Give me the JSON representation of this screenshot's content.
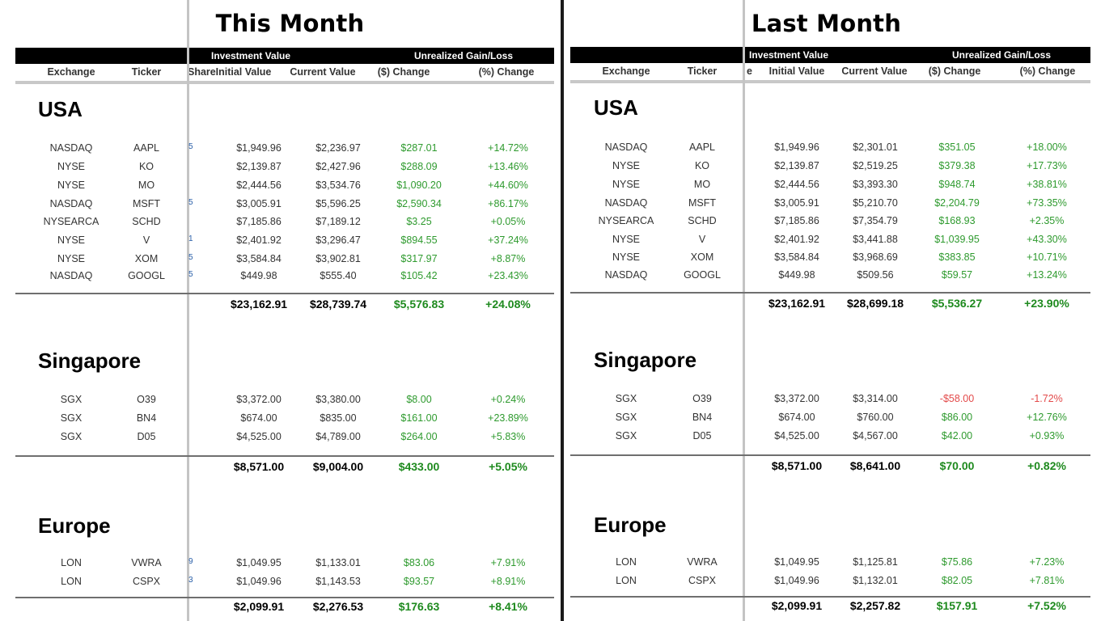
{
  "colors": {
    "header_band": "#000000",
    "gain": "#2e9a2e",
    "loss": "#e34a4a",
    "divider": "#1a1a1a",
    "frozen_pane_line": "#c4c4c4"
  },
  "this_month": {
    "title": "This Month",
    "header_groups": {
      "investment_value": "Investment Value",
      "unrealized": "Unrealized Gain/Loss"
    },
    "columns": {
      "exchange": "Exchange",
      "ticker": "Ticker",
      "share_partial": "Share",
      "initial": "Initial Value",
      "current": "Current Value",
      "change_abs": "($) Change",
      "change_pct": "(%) Change"
    },
    "regions": [
      {
        "name": "USA",
        "rows": [
          {
            "exchange": "NASDAQ",
            "ticker": "AAPL",
            "stub": "5",
            "initial": "$1,949.96",
            "current": "$2,236.97",
            "change": "$287.01",
            "pct": "+14.72%",
            "dir": "pos"
          },
          {
            "exchange": "NYSE",
            "ticker": "KO",
            "stub": "",
            "initial": "$2,139.87",
            "current": "$2,427.96",
            "change": "$288.09",
            "pct": "+13.46%",
            "dir": "pos"
          },
          {
            "exchange": "NYSE",
            "ticker": "MO",
            "stub": "",
            "initial": "$2,444.56",
            "current": "$3,534.76",
            "change": "$1,090.20",
            "pct": "+44.60%",
            "dir": "pos"
          },
          {
            "exchange": "NASDAQ",
            "ticker": "MSFT",
            "stub": "5",
            "initial": "$3,005.91",
            "current": "$5,596.25",
            "change": "$2,590.34",
            "pct": "+86.17%",
            "dir": "pos"
          },
          {
            "exchange": "NYSEARCA",
            "ticker": "SCHD",
            "stub": "",
            "initial": "$7,185.86",
            "current": "$7,189.12",
            "change": "$3.25",
            "pct": "+0.05%",
            "dir": "pos"
          },
          {
            "exchange": "NYSE",
            "ticker": "V",
            "stub": "1",
            "initial": "$2,401.92",
            "current": "$3,296.47",
            "change": "$894.55",
            "pct": "+37.24%",
            "dir": "pos"
          },
          {
            "exchange": "NYSE",
            "ticker": "XOM",
            "stub": "5",
            "initial": "$3,584.84",
            "current": "$3,902.81",
            "change": "$317.97",
            "pct": "+8.87%",
            "dir": "pos"
          },
          {
            "exchange": "NASDAQ",
            "ticker": "GOOGL",
            "stub": "5",
            "initial": "$449.98",
            "current": "$555.40",
            "change": "$105.42",
            "pct": "+23.43%",
            "dir": "pos"
          }
        ],
        "total": {
          "initial": "$23,162.91",
          "current": "$28,739.74",
          "change": "$5,576.83",
          "pct": "+24.08%"
        }
      },
      {
        "name": "Singapore",
        "rows": [
          {
            "exchange": "SGX",
            "ticker": "O39",
            "stub": "",
            "initial": "$3,372.00",
            "current": "$3,380.00",
            "change": "$8.00",
            "pct": "+0.24%",
            "dir": "pos"
          },
          {
            "exchange": "SGX",
            "ticker": "BN4",
            "stub": "",
            "initial": "$674.00",
            "current": "$835.00",
            "change": "$161.00",
            "pct": "+23.89%",
            "dir": "pos"
          },
          {
            "exchange": "SGX",
            "ticker": "D05",
            "stub": "",
            "initial": "$4,525.00",
            "current": "$4,789.00",
            "change": "$264.00",
            "pct": "+5.83%",
            "dir": "pos"
          }
        ],
        "total": {
          "initial": "$8,571.00",
          "current": "$9,004.00",
          "change": "$433.00",
          "pct": "+5.05%"
        }
      },
      {
        "name": "Europe",
        "rows": [
          {
            "exchange": "LON",
            "ticker": "VWRA",
            "stub": "9",
            "initial": "$1,049.95",
            "current": "$1,133.01",
            "change": "$83.06",
            "pct": "+7.91%",
            "dir": "pos"
          },
          {
            "exchange": "LON",
            "ticker": "CSPX",
            "stub": "3",
            "initial": "$1,049.96",
            "current": "$1,143.53",
            "change": "$93.57",
            "pct": "+8.91%",
            "dir": "pos"
          }
        ],
        "total": {
          "initial": "$2,099.91",
          "current": "$2,276.53",
          "change": "$176.63",
          "pct": "+8.41%"
        }
      }
    ]
  },
  "last_month": {
    "title": "Last Month",
    "header_groups": {
      "investment_value": "Investment Value",
      "unrealized": "Unrealized Gain/Loss"
    },
    "columns": {
      "exchange": "Exchange",
      "ticker": "Ticker",
      "share_partial": "e",
      "initial": "Initial Value",
      "current": "Current Value",
      "change_abs": "($) Change",
      "change_pct": "(%) Change"
    },
    "regions": [
      {
        "name": "USA",
        "rows": [
          {
            "exchange": "NASDAQ",
            "ticker": "AAPL",
            "initial": "$1,949.96",
            "current": "$2,301.01",
            "change": "$351.05",
            "pct": "+18.00%",
            "dir": "pos"
          },
          {
            "exchange": "NYSE",
            "ticker": "KO",
            "initial": "$2,139.87",
            "current": "$2,519.25",
            "change": "$379.38",
            "pct": "+17.73%",
            "dir": "pos"
          },
          {
            "exchange": "NYSE",
            "ticker": "MO",
            "initial": "$2,444.56",
            "current": "$3,393.30",
            "change": "$948.74",
            "pct": "+38.81%",
            "dir": "pos"
          },
          {
            "exchange": "NASDAQ",
            "ticker": "MSFT",
            "initial": "$3,005.91",
            "current": "$5,210.70",
            "change": "$2,204.79",
            "pct": "+73.35%",
            "dir": "pos"
          },
          {
            "exchange": "NYSEARCA",
            "ticker": "SCHD",
            "initial": "$7,185.86",
            "current": "$7,354.79",
            "change": "$168.93",
            "pct": "+2.35%",
            "dir": "pos"
          },
          {
            "exchange": "NYSE",
            "ticker": "V",
            "initial": "$2,401.92",
            "current": "$3,441.88",
            "change": "$1,039.95",
            "pct": "+43.30%",
            "dir": "pos"
          },
          {
            "exchange": "NYSE",
            "ticker": "XOM",
            "initial": "$3,584.84",
            "current": "$3,968.69",
            "change": "$383.85",
            "pct": "+10.71%",
            "dir": "pos"
          },
          {
            "exchange": "NASDAQ",
            "ticker": "GOOGL",
            "initial": "$449.98",
            "current": "$509.56",
            "change": "$59.57",
            "pct": "+13.24%",
            "dir": "pos"
          }
        ],
        "total": {
          "initial": "$23,162.91",
          "current": "$28,699.18",
          "change": "$5,536.27",
          "pct": "+23.90%"
        }
      },
      {
        "name": "Singapore",
        "rows": [
          {
            "exchange": "SGX",
            "ticker": "O39",
            "initial": "$3,372.00",
            "current": "$3,314.00",
            "change": "-$58.00",
            "pct": "-1.72%",
            "dir": "neg"
          },
          {
            "exchange": "SGX",
            "ticker": "BN4",
            "initial": "$674.00",
            "current": "$760.00",
            "change": "$86.00",
            "pct": "+12.76%",
            "dir": "pos"
          },
          {
            "exchange": "SGX",
            "ticker": "D05",
            "initial": "$4,525.00",
            "current": "$4,567.00",
            "change": "$42.00",
            "pct": "+0.93%",
            "dir": "pos"
          }
        ],
        "total": {
          "initial": "$8,571.00",
          "current": "$8,641.00",
          "change": "$70.00",
          "pct": "+0.82%"
        }
      },
      {
        "name": "Europe",
        "rows": [
          {
            "exchange": "LON",
            "ticker": "VWRA",
            "initial": "$1,049.95",
            "current": "$1,125.81",
            "change": "$75.86",
            "pct": "+7.23%",
            "dir": "pos"
          },
          {
            "exchange": "LON",
            "ticker": "CSPX",
            "initial": "$1,049.96",
            "current": "$1,132.01",
            "change": "$82.05",
            "pct": "+7.81%",
            "dir": "pos"
          }
        ],
        "total": {
          "initial": "$2,099.91",
          "current": "$2,257.82",
          "change": "$157.91",
          "pct": "+7.52%"
        }
      }
    ]
  }
}
